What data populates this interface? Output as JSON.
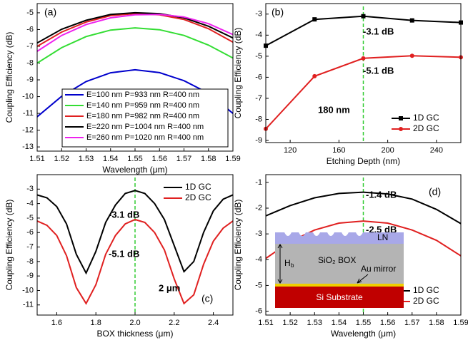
{
  "chart_data": [
    {
      "type": "line",
      "annotations": [
        "(a)"
      ],
      "x_label": "Wavelength (μm)",
      "y_label": "Coupling Efficiency (dB)",
      "x": [
        1.51,
        1.52,
        1.53,
        1.54,
        1.55,
        1.56,
        1.57,
        1.58,
        1.59
      ],
      "series": [
        {
          "name": "E=100 nm P=933 nm R=400 nm",
          "color": "#0000cc",
          "values": [
            -11.2,
            -9.98,
            -9.1,
            -8.58,
            -8.4,
            -8.57,
            -9.05,
            -9.8,
            -11.0
          ]
        },
        {
          "name": "E=140 nm P=959 nm R=400 nm",
          "color": "#33dd33",
          "values": [
            -8.0,
            -7.08,
            -6.42,
            -6.03,
            -5.9,
            -6.01,
            -6.35,
            -6.93,
            -7.7
          ]
        },
        {
          "name": "E=180 nm P=982 nm R=400 nm",
          "color": "#e02020",
          "values": [
            -7.0,
            -6.15,
            -5.55,
            -5.17,
            -5.05,
            -5.12,
            -5.4,
            -5.95,
            -6.75
          ]
        },
        {
          "name": "E=220 nm P=1004 nm R=400 nm",
          "color": "#000000",
          "values": [
            -6.8,
            -5.98,
            -5.45,
            -5.1,
            -5.0,
            -5.05,
            -5.3,
            -5.8,
            -6.5
          ]
        },
        {
          "name": "E=260 nm P=1020 nm R=400 nm",
          "color": "#ee22ee",
          "values": [
            -7.3,
            -6.35,
            -5.7,
            -5.3,
            -5.12,
            -5.1,
            -5.25,
            -5.65,
            -6.3
          ]
        }
      ],
      "xlim": [
        1.51,
        1.59
      ],
      "xticks": [
        1.51,
        1.52,
        1.53,
        1.54,
        1.55,
        1.56,
        1.57,
        1.58,
        1.59
      ],
      "ylim": [
        -13.25,
        -4.45
      ],
      "yticks": [
        -5,
        -6,
        -7,
        -8,
        -9,
        -10,
        -11,
        -12,
        -13
      ],
      "legend": "lower-center"
    },
    {
      "type": "line",
      "annotations": [
        "(b)",
        "-3.1 dB",
        "-5.1 dB",
        "180 nm"
      ],
      "x_label": "Etching Depth (nm)",
      "y_label": "Coupling Efficiency (dB)",
      "x": [
        100,
        140,
        180,
        220,
        260
      ],
      "series": [
        {
          "name": "1D GC",
          "color": "#000000",
          "marker": "square",
          "values": [
            -4.5,
            -3.25,
            -3.1,
            -3.3,
            -3.4
          ]
        },
        {
          "name": "2D GC",
          "color": "#e02020",
          "marker": "circle",
          "values": [
            -8.45,
            -5.95,
            -5.1,
            -4.98,
            -5.05
          ]
        }
      ],
      "xlim": [
        100,
        260
      ],
      "xticks": [
        120,
        160,
        200,
        240
      ],
      "ylim": [
        -9.1,
        -2.5
      ],
      "yticks": [
        -3,
        -4,
        -5,
        -6,
        -7,
        -8,
        -9
      ],
      "vline": 180,
      "vline_color": "#33cc33",
      "legend": "lower-right"
    },
    {
      "type": "line",
      "annotations": [
        "(c)",
        "-3.1 dB",
        "-5.1 dB",
        "2 μm"
      ],
      "x_label": "BOX thickness (μm)",
      "y_label": "Coupling Efficiency (dB)",
      "x": [
        1.5,
        1.55,
        1.6,
        1.65,
        1.7,
        1.75,
        1.8,
        1.85,
        1.9,
        1.95,
        2.0,
        2.05,
        2.1,
        2.15,
        2.2,
        2.25,
        2.3,
        2.35,
        2.4,
        2.45,
        2.5
      ],
      "series": [
        {
          "name": "1D GC",
          "color": "#000000",
          "values": [
            -3.4,
            -3.6,
            -4.2,
            -5.4,
            -7.5,
            -8.8,
            -7.3,
            -5.3,
            -4.1,
            -3.3,
            -3.1,
            -3.3,
            -4.0,
            -5.1,
            -6.9,
            -8.7,
            -8.0,
            -6.0,
            -4.5,
            -3.7,
            -3.4
          ]
        },
        {
          "name": "2D GC",
          "color": "#e02020",
          "values": [
            -5.2,
            -5.5,
            -6.2,
            -7.6,
            -9.8,
            -10.9,
            -9.6,
            -7.5,
            -6.2,
            -5.4,
            -5.1,
            -5.3,
            -6.0,
            -7.2,
            -9.2,
            -10.9,
            -10.3,
            -8.2,
            -6.6,
            -5.7,
            -5.2
          ]
        }
      ],
      "xlim": [
        1.5,
        2.5
      ],
      "xticks": [
        1.6,
        1.8,
        {
          "value": 2.0,
          "label": "2.0"
        },
        2.2,
        2.4
      ],
      "ylim": [
        -11.7,
        -2.0
      ],
      "yticks": [
        -3,
        -4,
        -5,
        -6,
        -7,
        -8,
        -9,
        -10,
        -11
      ],
      "vline": 2.0,
      "vline_color": "#33cc33",
      "legend": "upper-right"
    },
    {
      "type": "line",
      "annotations": [
        "(d)",
        "-1.4 dB",
        "-2.5 dB"
      ],
      "x_label": "Wavelength (μm)",
      "y_label": "Coupling Efficiency (dB)",
      "x": [
        1.51,
        1.52,
        1.53,
        1.54,
        1.55,
        1.56,
        1.57,
        1.58,
        1.59
      ],
      "series": [
        {
          "name": "1D GC",
          "color": "#000000",
          "values": [
            -2.3,
            -1.9,
            -1.6,
            -1.43,
            -1.38,
            -1.45,
            -1.65,
            -2.05,
            -2.6
          ]
        },
        {
          "name": "2D GC",
          "color": "#e02020",
          "values": [
            -3.95,
            -3.3,
            -2.85,
            -2.58,
            -2.5,
            -2.58,
            -2.85,
            -3.25,
            -3.85
          ]
        }
      ],
      "xlim": [
        1.51,
        1.59
      ],
      "xticks": [
        1.51,
        1.52,
        1.53,
        1.54,
        1.55,
        1.56,
        1.57,
        1.58,
        1.59
      ],
      "ylim": [
        -6.15,
        -0.7
      ],
      "yticks": [
        -1,
        -2,
        -3,
        -4,
        -5,
        -6
      ],
      "vline": 1.55,
      "vline_color": "#33cc33",
      "legend": "lower-right"
    }
  ],
  "inset": {
    "ln": "LN",
    "h": "H",
    "h_sub": "b",
    "box": "SiO₂ BOX",
    "mirror": "Au mirror",
    "substrate": "Si Substrate"
  }
}
